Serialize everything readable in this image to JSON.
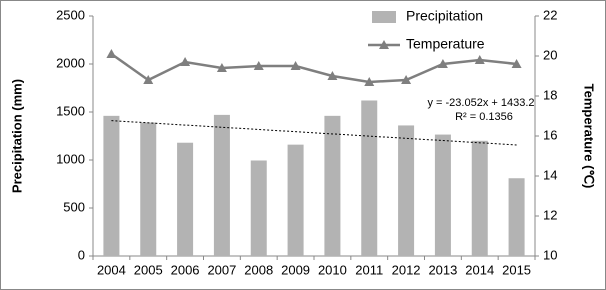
{
  "chart_data": {
    "type": "bar-line",
    "categories": [
      "2004",
      "2005",
      "2006",
      "2007",
      "2008",
      "2009",
      "2010",
      "2011",
      "2012",
      "2013",
      "2014",
      "2015"
    ],
    "series": [
      {
        "name": "Precipitation",
        "type": "bar",
        "color": "#b3b3b3",
        "values": [
          1460,
          1390,
          1180,
          1470,
          995,
          1160,
          1460,
          1620,
          1360,
          1265,
          1200,
          810
        ]
      },
      {
        "name": "Temperature",
        "type": "line",
        "axis": "y2",
        "color": "#7f7f7f",
        "values": [
          20.1,
          18.8,
          19.7,
          19.4,
          19.5,
          19.5,
          19.0,
          18.7,
          18.8,
          19.6,
          19.8,
          19.6
        ]
      }
    ],
    "y_label": "Precipitation (mm)",
    "y2_label": "Temperature (℃)",
    "ylim": [
      0,
      2500
    ],
    "yticks": [
      0,
      500,
      1000,
      1500,
      2000,
      2500
    ],
    "y2lim": [
      10,
      22
    ],
    "y2ticks": [
      10,
      12,
      14,
      16,
      18,
      20,
      22
    ],
    "trendline": {
      "slope": -23.052,
      "intercept": 1433.2,
      "label": "y = -23.052x + 1433.2",
      "r2_label": "R² = 0.1356"
    },
    "legend": "top-right",
    "grid": false
  }
}
